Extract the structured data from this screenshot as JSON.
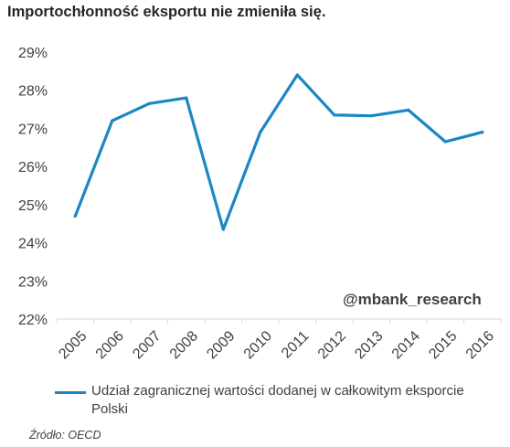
{
  "title": "Importochłonność eksportu nie zmieniła się.",
  "watermark": "@mbank_research",
  "source": "Źródło: OECD",
  "colors": {
    "line": "#1a87c4",
    "axis": "#d9d9d9",
    "text": "#404040"
  },
  "chart_data": {
    "type": "line",
    "categories": [
      "2005",
      "2006",
      "2007",
      "2008",
      "2009",
      "2010",
      "2011",
      "2012",
      "2013",
      "2014",
      "2015",
      "2016"
    ],
    "series": [
      {
        "name": "Udział zagranicznej wartości dodanej w całkowitym eksporcie Polski",
        "values": [
          24.7,
          27.2,
          27.65,
          27.8,
          24.35,
          26.9,
          28.4,
          27.35,
          27.33,
          27.48,
          26.65,
          26.9
        ]
      }
    ],
    "ylim": [
      22,
      29
    ],
    "yticks": [
      "22%",
      "23%",
      "24%",
      "25%",
      "26%",
      "27%",
      "28%",
      "29%"
    ],
    "grid": false,
    "legend": "bottom"
  }
}
